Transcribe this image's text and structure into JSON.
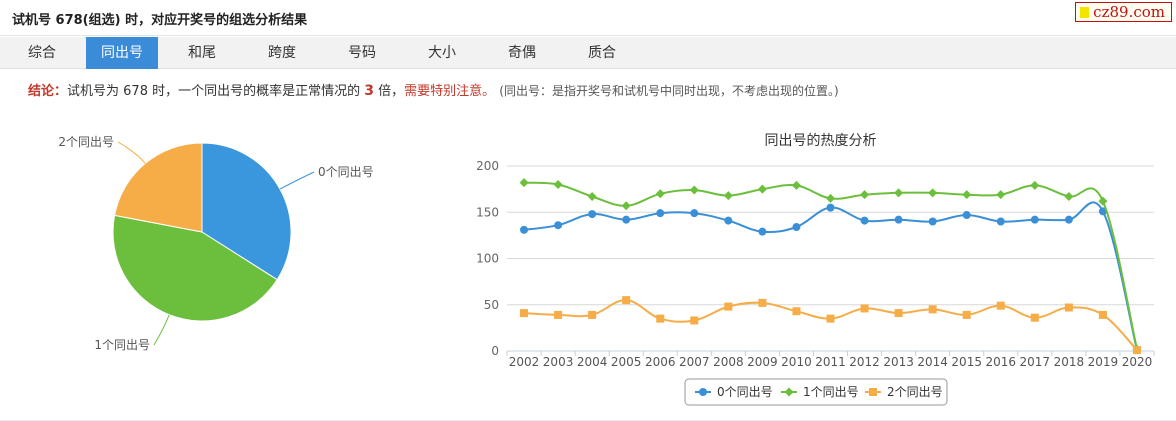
{
  "header": {
    "title": "试机号 678(组选) 时，对应开奖号的组选分析结果",
    "logo_text": "cz89.com"
  },
  "tabs": [
    {
      "label": "综合",
      "active": false
    },
    {
      "label": "同出号",
      "active": true
    },
    {
      "label": "和尾",
      "active": false
    },
    {
      "label": "跨度",
      "active": false
    },
    {
      "label": "号码",
      "active": false
    },
    {
      "label": "大小",
      "active": false
    },
    {
      "label": "奇偶",
      "active": false
    },
    {
      "label": "质合",
      "active": false
    }
  ],
  "conclusion": {
    "label": "结论：",
    "text1": "试机号为 678 时，一个同出号的概率是正常情况的 ",
    "number": "3",
    "text2": " 倍，",
    "warning": "需要特别注意。",
    "note": "(同出号：是指开奖号和试机号中同时出现，不考虑出现的位置。)"
  },
  "chart_data": [
    {
      "type": "pie",
      "title": "",
      "slices": [
        {
          "label": "0个同出号",
          "value": 34,
          "color": "#3a96dd"
        },
        {
          "label": "1个同出号",
          "value": 44,
          "color": "#6cbf3c"
        },
        {
          "label": "2个同出号",
          "value": 22,
          "color": "#f6ad48"
        }
      ]
    },
    {
      "type": "line",
      "title": "同出号的热度分析",
      "x": [
        "2002",
        "2003",
        "2004",
        "2005",
        "2006",
        "2007",
        "2008",
        "2009",
        "2010",
        "2011",
        "2012",
        "2013",
        "2014",
        "2015",
        "2016",
        "2017",
        "2018",
        "2019",
        "2020"
      ],
      "ylim": [
        0,
        200
      ],
      "yticks": [
        0,
        50,
        100,
        150,
        200
      ],
      "grid": true,
      "legend_position": "bottom",
      "series": [
        {
          "name": "0个同出号",
          "color": "#3a8fd6",
          "marker": "circle",
          "values": [
            131,
            136,
            148,
            142,
            149,
            149,
            141,
            129,
            134,
            155,
            141,
            142,
            140,
            147,
            140,
            142,
            142,
            151,
            1
          ]
        },
        {
          "name": "1个同出号",
          "color": "#6cbf3c",
          "marker": "diamond",
          "values": [
            182,
            180,
            167,
            157,
            170,
            174,
            168,
            175,
            179,
            165,
            169,
            171,
            171,
            169,
            169,
            179,
            167,
            162,
            2
          ]
        },
        {
          "name": "2个同出号",
          "color": "#f6ad48",
          "marker": "square",
          "values": [
            41,
            39,
            39,
            55,
            35,
            33,
            48,
            52,
            43,
            35,
            46,
            41,
            45,
            39,
            49,
            36,
            47,
            39,
            1
          ]
        }
      ]
    }
  ]
}
